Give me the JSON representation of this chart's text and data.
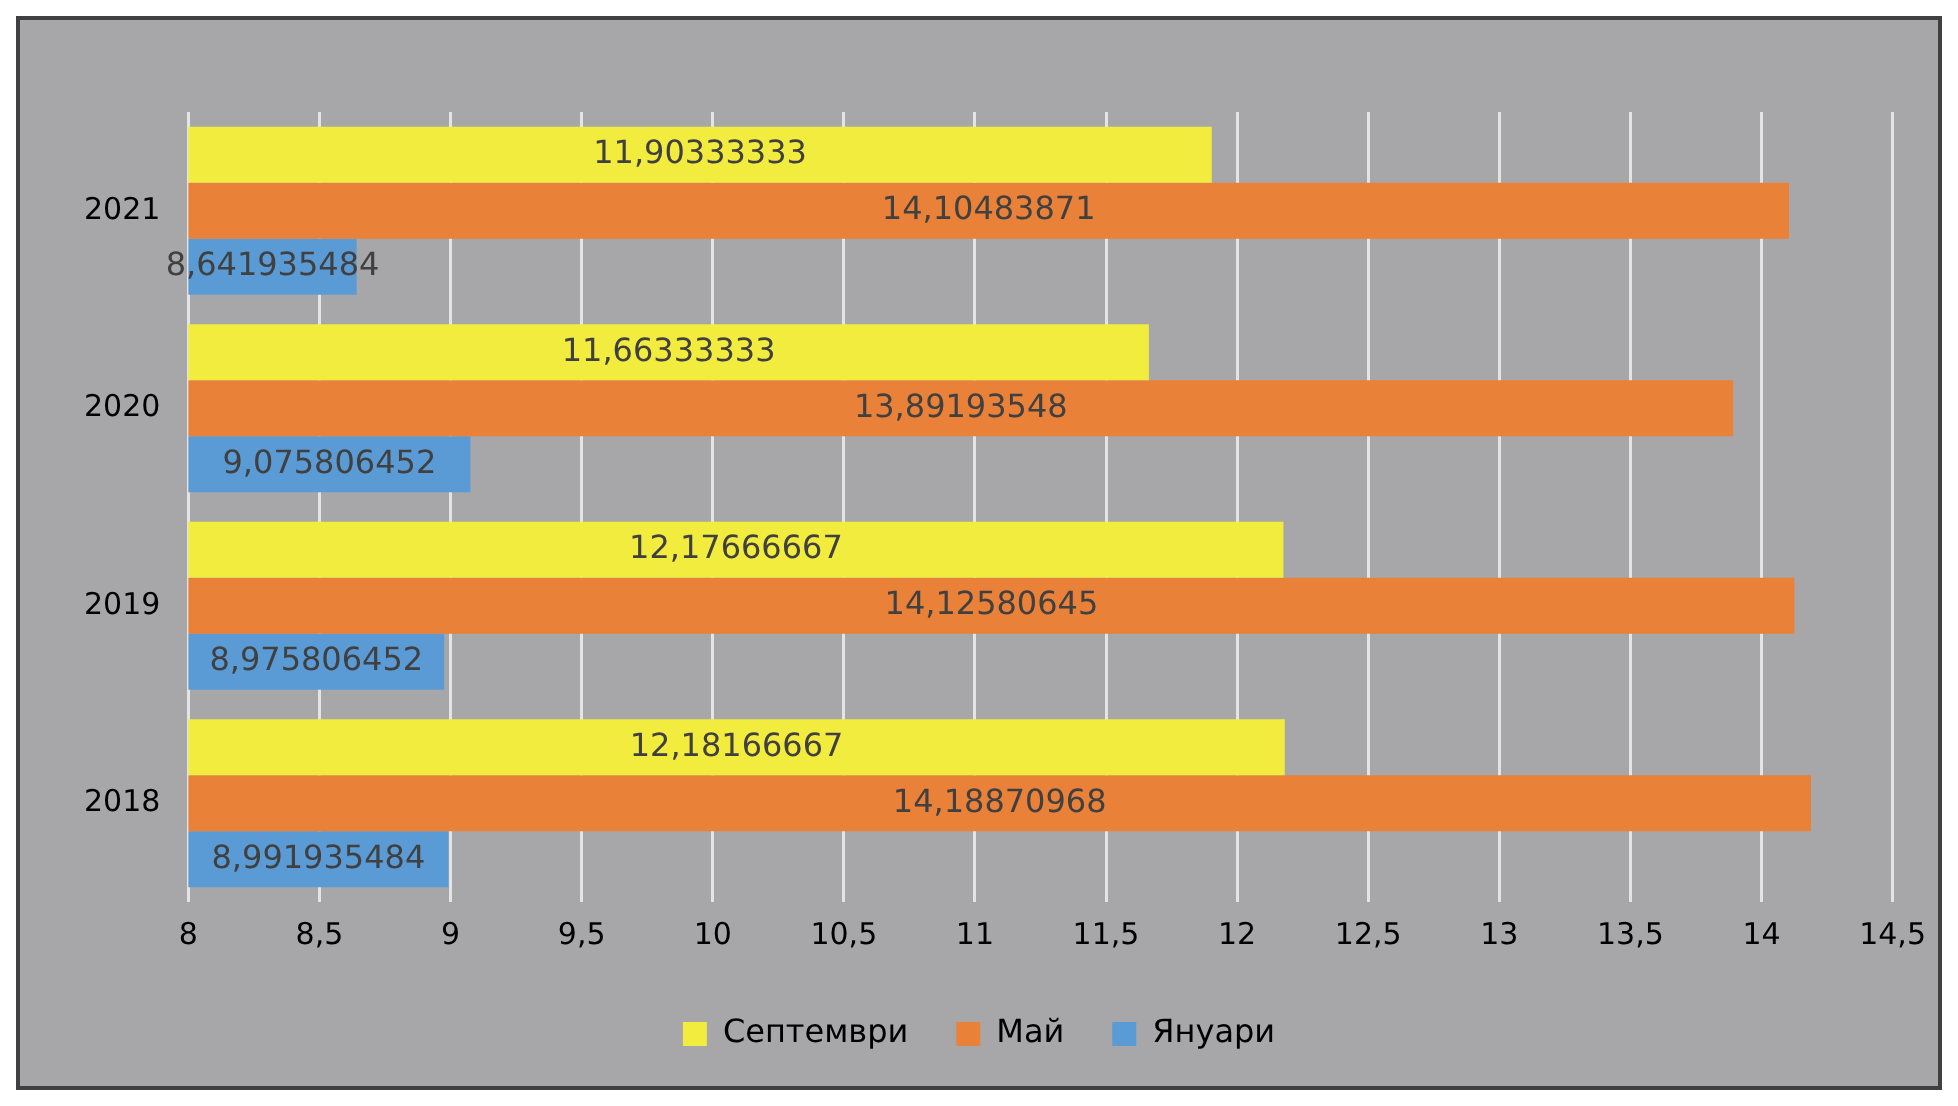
{
  "chart_data": {
    "type": "bar",
    "orientation": "horizontal",
    "categories": [
      "2021",
      "2020",
      "2019",
      "2018"
    ],
    "series": [
      {
        "name": "Септември",
        "color": "#f2ec3f",
        "values": [
          11.90333333,
          11.66333333,
          12.17666667,
          12.18166667
        ],
        "value_labels": [
          "11,90333333",
          "11,66333333",
          "12,17666667",
          "12,18166667"
        ]
      },
      {
        "name": "Май",
        "color": "#ea8139",
        "values": [
          14.10483871,
          13.89193548,
          14.12580645,
          14.18870968
        ],
        "value_labels": [
          "14,10483871",
          "13,89193548",
          "14,12580645",
          "14,18870968"
        ]
      },
      {
        "name": "Януари",
        "color": "#5b9bd5",
        "values": [
          8.641935484,
          9.075806452,
          8.975806452,
          8.991935484
        ],
        "value_labels": [
          "8,641935484",
          "9,075806452",
          "8,975806452",
          "8,991935484"
        ]
      }
    ],
    "xlim": [
      8,
      14.5
    ],
    "xticks": [
      8,
      {
        "value": 8.5,
        "label": "8,5"
      },
      9,
      {
        "value": 9.5,
        "label": "9,5"
      },
      10,
      {
        "value": 10.5,
        "label": "10,5"
      },
      11,
      {
        "value": 11.5,
        "label": "11,5"
      },
      12,
      {
        "value": 12.5,
        "label": "12,5"
      },
      13,
      {
        "value": 13.5,
        "label": "13,5"
      },
      14,
      {
        "value": 14.5,
        "label": "14,5"
      }
    ],
    "grid": "x",
    "legend": "bottom"
  }
}
